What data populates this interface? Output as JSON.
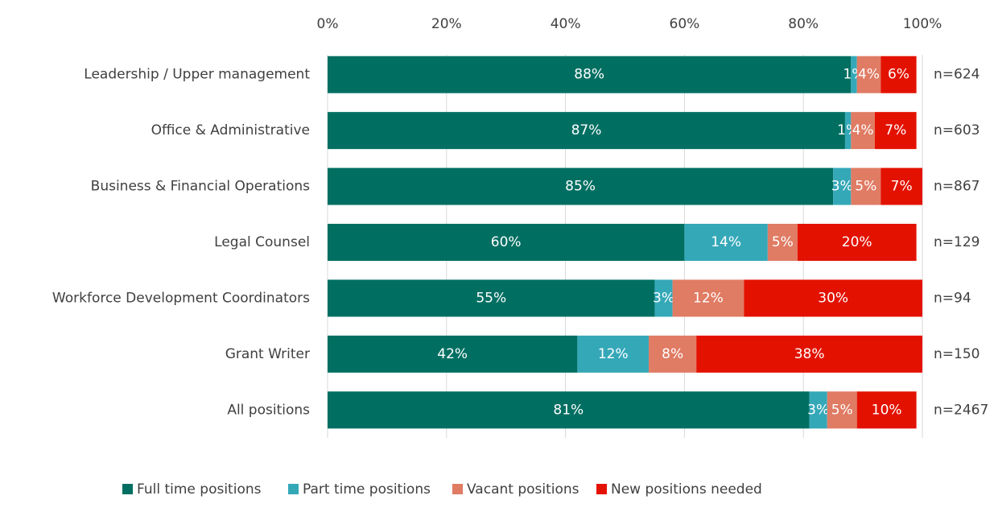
{
  "chart_data": {
    "type": "stacked-barh",
    "categories": [
      "Leadership / Upper management",
      "Office & Administrative",
      "Business & Financial Operations",
      "Legal Counsel",
      "Workforce Development Coordinators",
      "Grant Writer",
      "All positions"
    ],
    "series": [
      {
        "name": "Full time positions",
        "color": "#006f62",
        "values": [
          88,
          87,
          85,
          60,
          55,
          42,
          81
        ],
        "value_labels": [
          "88%",
          "87%",
          "85%",
          "60%",
          "55%",
          "42%",
          "81%"
        ]
      },
      {
        "name": "Part time positions",
        "color": "#35a8b8",
        "values": [
          1,
          1,
          3,
          14,
          3,
          12,
          3
        ],
        "value_labels": [
          "1%",
          "1%",
          "3%",
          "14%",
          "3%",
          "12%",
          "3%"
        ]
      },
      {
        "name": "Vacant positions",
        "color": "#e07b64",
        "values": [
          4,
          4,
          5,
          5,
          12,
          8,
          5
        ],
        "value_labels": [
          "4%",
          "4%",
          "5%",
          "5%",
          "12%",
          "8%",
          "5%"
        ]
      },
      {
        "name": "New positions needed",
        "color": "#e31200",
        "values": [
          6,
          7,
          7,
          20,
          30,
          38,
          10
        ],
        "value_labels": [
          "6%",
          "7%",
          "7%",
          "20%",
          "30%",
          "38%",
          "10%"
        ]
      }
    ],
    "sample_sizes": [
      "n=624",
      "n=603",
      "n=867",
      "n=129",
      "n=94",
      "n=150",
      "n=2467"
    ],
    "xlim": [
      0,
      100
    ],
    "xticks": [
      {
        "value": 0,
        "label": "0%"
      },
      {
        "value": 20,
        "label": "20%"
      },
      {
        "value": 40,
        "label": "40%"
      },
      {
        "value": 60,
        "label": "60%"
      },
      {
        "value": 80,
        "label": "80%"
      },
      {
        "value": 100,
        "label": "100%"
      }
    ],
    "grid": true,
    "legend": "bottom"
  }
}
